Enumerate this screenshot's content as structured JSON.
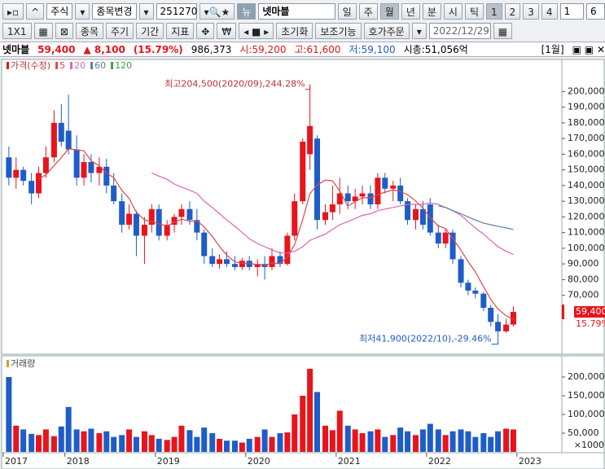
{
  "toolbar": {
    "market": "주식",
    "change": "종목변경",
    "code": "251270",
    "name": "넷마블",
    "periods": [
      "일",
      "주",
      "월",
      "년",
      "분",
      "시",
      "틱"
    ],
    "numbers": [
      "1",
      "2",
      "3",
      "4"
    ],
    "count": "1",
    "extra": "6"
  },
  "toolbar2": {
    "layout": "1X1",
    "buttons": [
      "종목",
      "주기",
      "기간",
      "지표"
    ],
    "reset": "초기화",
    "aux": "보조기능",
    "order": "호가주문",
    "date": "2022/12/29"
  },
  "quote": {
    "name": "넷마블",
    "price": "59,400",
    "change": "▲ 8,100",
    "rate": "(15.79%)",
    "volume": "986,373",
    "open": "시:59,200",
    "high": "고:61,600",
    "low": "저:59,100",
    "cap": "시총:51,056억",
    "period": "[1월]"
  },
  "chart_data": [
    {
      "type": "candlestick",
      "legend_label": "가격(수정)",
      "up_color": "#e8141c",
      "down_color": "#1e5dc8",
      "xlim": [
        2017.3,
        2023.1
      ],
      "x": [
        2017.38,
        2017.46,
        2017.54,
        2017.63,
        2017.71,
        2017.79,
        2017.88,
        2017.96,
        2018.04,
        2018.13,
        2018.21,
        2018.29,
        2018.38,
        2018.46,
        2018.54,
        2018.63,
        2018.71,
        2018.79,
        2018.88,
        2018.96,
        2019.04,
        2019.13,
        2019.21,
        2019.29,
        2019.38,
        2019.46,
        2019.54,
        2019.63,
        2019.71,
        2019.79,
        2019.88,
        2019.96,
        2020.04,
        2020.13,
        2020.21,
        2020.29,
        2020.38,
        2020.46,
        2020.54,
        2020.63,
        2020.71,
        2020.79,
        2020.88,
        2020.96,
        2021.04,
        2021.13,
        2021.21,
        2021.29,
        2021.38,
        2021.46,
        2021.54,
        2021.63,
        2021.71,
        2021.79,
        2021.88,
        2021.96,
        2022.04,
        2022.13,
        2022.21,
        2022.29,
        2022.38,
        2022.46,
        2022.54,
        2022.63,
        2022.71,
        2022.79,
        2022.88,
        2022.96
      ],
      "open": [
        158000,
        145000,
        150000,
        143000,
        135000,
        148000,
        158000,
        180000,
        175000,
        163000,
        145000,
        155000,
        148000,
        152000,
        140000,
        130000,
        115000,
        122000,
        108000,
        115000,
        125000,
        108000,
        115000,
        120000,
        125000,
        118000,
        110000,
        95000,
        90000,
        93000,
        90000,
        88000,
        92000,
        88000,
        90000,
        88000,
        95000,
        90000,
        108000,
        130000,
        160000,
        170000,
        118000,
        123000,
        128000,
        135000,
        130000,
        133000,
        135000,
        128000,
        145000,
        138000,
        140000,
        130000,
        118000,
        125000,
        128000,
        110000,
        103000,
        110000,
        93000,
        78000,
        73000,
        71000,
        62000,
        53000,
        47000,
        51300
      ],
      "high": [
        165000,
        158000,
        152000,
        148000,
        152000,
        165000,
        188000,
        192000,
        198000,
        172000,
        160000,
        160000,
        158000,
        157000,
        148000,
        135000,
        128000,
        124000,
        120000,
        128000,
        128000,
        118000,
        122000,
        128000,
        130000,
        125000,
        112000,
        100000,
        96000,
        98000,
        95000,
        94000,
        95000,
        93000,
        95000,
        100000,
        98000,
        110000,
        135000,
        170000,
        204500,
        172000,
        128000,
        140000,
        145000,
        140000,
        138000,
        140000,
        140000,
        148000,
        148000,
        143000,
        145000,
        132000,
        128000,
        130000,
        132000,
        115000,
        112000,
        112000,
        95000,
        80000,
        75000,
        72000,
        64000,
        58000,
        55000,
        63000
      ],
      "low": [
        140000,
        138000,
        140000,
        128000,
        132000,
        145000,
        155000,
        165000,
        160000,
        140000,
        140000,
        142000,
        140000,
        135000,
        128000,
        110000,
        112000,
        95000,
        90000,
        110000,
        105000,
        105000,
        110000,
        115000,
        115000,
        105000,
        90000,
        88000,
        87000,
        88000,
        86000,
        86000,
        86000,
        82000,
        80000,
        86000,
        88000,
        89000,
        105000,
        128000,
        150000,
        112000,
        115000,
        118000,
        122000,
        125000,
        125000,
        128000,
        125000,
        125000,
        135000,
        130000,
        128000,
        115000,
        112000,
        112000,
        108000,
        100000,
        100000,
        90000,
        75000,
        70000,
        68000,
        60000,
        50000,
        41900,
        46000,
        50000
      ],
      "close": [
        145000,
        150000,
        143000,
        135000,
        148000,
        158000,
        180000,
        168000,
        163000,
        145000,
        155000,
        148000,
        152000,
        140000,
        130000,
        115000,
        122000,
        108000,
        115000,
        125000,
        108000,
        115000,
        120000,
        125000,
        118000,
        110000,
        95000,
        90000,
        93000,
        90000,
        88000,
        92000,
        88000,
        90000,
        88000,
        95000,
        90000,
        108000,
        130000,
        168000,
        178000,
        118000,
        123000,
        128000,
        135000,
        130000,
        133000,
        135000,
        128000,
        145000,
        138000,
        140000,
        130000,
        118000,
        125000,
        115000,
        110000,
        103000,
        110000,
        93000,
        78000,
        73000,
        71000,
        62000,
        53000,
        47000,
        51300,
        59400
      ],
      "series": [
        {
          "name": "5",
          "color": "#e0474c",
          "values": [
            null,
            null,
            null,
            null,
            144200,
            146800,
            152800,
            157800,
            163400,
            162800,
            162200,
            155800,
            152600,
            148000,
            145000,
            137000,
            131800,
            123000,
            118000,
            117000,
            115600,
            114200,
            116600,
            118600,
            117200,
            117600,
            113600,
            107600,
            101200,
            95600,
            91200,
            90600,
            90200,
            89600,
            89200,
            90600,
            90200,
            94200,
            102200,
            118200,
            134800,
            140400,
            143400,
            143000,
            136400,
            126800,
            129800,
            132200,
            132200,
            134200,
            135800,
            137200,
            136200,
            134200,
            130200,
            125600,
            119600,
            114200,
            112600,
            106200,
            98800,
            91400,
            85000,
            75400,
            67400,
            61200,
            56900,
            54500
          ]
        },
        {
          "name": "20",
          "color": "#d866b8",
          "values": [
            null,
            null,
            null,
            null,
            null,
            null,
            null,
            null,
            null,
            null,
            null,
            null,
            null,
            null,
            null,
            null,
            null,
            null,
            null,
            148000,
            146000,
            144000,
            141000,
            139000,
            137000,
            135000,
            130000,
            126000,
            122000,
            118000,
            114000,
            110000,
            106000,
            103000,
            101000,
            99000,
            97000,
            97000,
            98000,
            101000,
            105000,
            107000,
            109000,
            112000,
            115000,
            117000,
            119000,
            121000,
            122000,
            124000,
            125000,
            126000,
            127000,
            128000,
            128000,
            128000,
            129000,
            128000,
            126000,
            124000,
            121000,
            117000,
            113000,
            109000,
            105000,
            101000,
            98000,
            96000
          ]
        },
        {
          "name": "60",
          "color": "#5b7fa8",
          "values": [
            null,
            null,
            null,
            null,
            null,
            null,
            null,
            null,
            null,
            null,
            null,
            null,
            null,
            null,
            null,
            null,
            null,
            null,
            null,
            null,
            null,
            null,
            null,
            null,
            null,
            null,
            null,
            null,
            null,
            null,
            null,
            null,
            null,
            null,
            null,
            null,
            null,
            null,
            null,
            null,
            null,
            null,
            null,
            null,
            null,
            null,
            null,
            null,
            null,
            null,
            null,
            null,
            null,
            null,
            null,
            null,
            null,
            127000,
            126000,
            124000,
            122000,
            120000,
            118000,
            116000,
            115000,
            114000,
            113000,
            112000
          ]
        },
        {
          "name": "120",
          "color": "#3aa040",
          "values": [
            null,
            null,
            null,
            null,
            null,
            null,
            null,
            null,
            null,
            null,
            null,
            null,
            null,
            null,
            null,
            null,
            null,
            null,
            null,
            null,
            null,
            null,
            null,
            null,
            null,
            null,
            null,
            null,
            null,
            null,
            null,
            null,
            null,
            null,
            null,
            null,
            null,
            null,
            null,
            null,
            null,
            null,
            null,
            null,
            null,
            null,
            null,
            null,
            null,
            null,
            null,
            null,
            null,
            null,
            null,
            null,
            null,
            null,
            null,
            null,
            null,
            null,
            null,
            null,
            null,
            null,
            null,
            null
          ]
        }
      ],
      "ylim": [
        35000,
        208000
      ],
      "yticks": [
        {
          "value": 70000,
          "label": "70,000"
        },
        {
          "value": 80000,
          "label": "80,000"
        },
        {
          "value": 90000,
          "label": "90,000"
        },
        {
          "value": 100000,
          "label": "100,000"
        },
        {
          "value": 110000,
          "label": "110,000"
        },
        {
          "value": 120000,
          "label": "120,000"
        },
        {
          "value": 130000,
          "label": "130,000"
        },
        {
          "value": 140000,
          "label": "140,000"
        },
        {
          "value": 150000,
          "label": "150,000"
        },
        {
          "value": 160000,
          "label": "160,000"
        },
        {
          "value": 170000,
          "label": "170,000"
        },
        {
          "value": 180000,
          "label": "180,000"
        },
        {
          "value": 190000,
          "label": "190,000"
        },
        {
          "value": 200000,
          "label": "200,000"
        }
      ],
      "annotations": [
        {
          "text": "최고204,500(2020/09),244.28%",
          "index": 40,
          "at": "high"
        },
        {
          "text": "최저41,900(2022/10),-29.46%",
          "index": 65,
          "at": "low"
        }
      ],
      "last_label": "59,400",
      "last_rate": "15.79%"
    },
    {
      "type": "bar",
      "title": "거래량",
      "unit_label": "×1000",
      "up_color": "#e8141c",
      "down_color": "#1e5dc8",
      "xlim": [
        2017.3,
        2023.1
      ],
      "xticks": [
        2017,
        2018,
        2019,
        2020,
        2021,
        2022,
        2023
      ],
      "values": [
        200000,
        70000,
        60000,
        48000,
        45000,
        60000,
        42000,
        68000,
        120000,
        60000,
        55000,
        62000,
        50000,
        55000,
        40000,
        45000,
        60000,
        40000,
        55000,
        45000,
        35000,
        32000,
        40000,
        70000,
        58000,
        40000,
        65000,
        50000,
        35000,
        30000,
        30000,
        25000,
        35000,
        40000,
        60000,
        40000,
        50000,
        52000,
        100000,
        150000,
        222000,
        160000,
        70000,
        58000,
        110000,
        70000,
        60000,
        50000,
        55000,
        60000,
        40000,
        45000,
        65000,
        55000,
        45000,
        60000,
        75000,
        60000,
        45000,
        55000,
        60000,
        55000,
        40000,
        50000,
        40000,
        55000,
        62000,
        60000
      ],
      "ylim": [
        0,
        250000
      ],
      "yticks": [
        {
          "value": 50000,
          "label": "50,000"
        },
        {
          "value": 100000,
          "label": "100,000"
        },
        {
          "value": 150000,
          "label": "150,000"
        },
        {
          "value": 200000,
          "label": "200,000"
        }
      ]
    }
  ]
}
